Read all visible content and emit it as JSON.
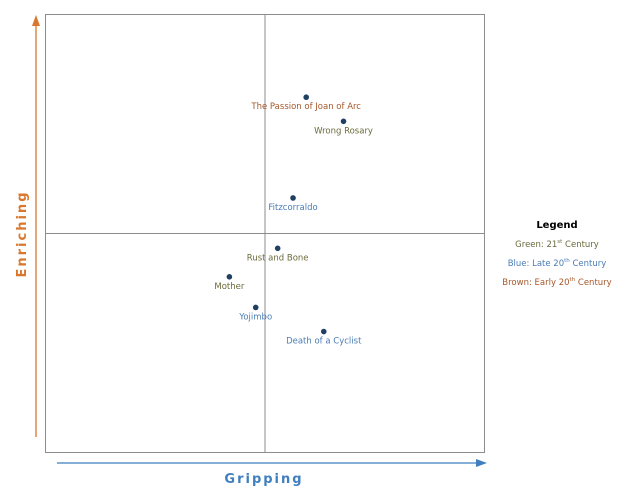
{
  "chart_data": {
    "type": "scatter",
    "xlabel": "Gripping",
    "ylabel": "Enriching",
    "xlim": [
      -10,
      10
    ],
    "ylim": [
      -10,
      10
    ],
    "grid": false,
    "quadrant_lines": true,
    "legend_position": "right",
    "marker_color": "#1f3f63",
    "points": [
      {
        "label": "The Passion of Joan of Arc",
        "x": 1.9,
        "y": 6.2,
        "group": "brown"
      },
      {
        "label": "Wrong Rosary",
        "x": 3.6,
        "y": 5.1,
        "group": "green"
      },
      {
        "label": "Fitzcorraldo",
        "x": 1.3,
        "y": 1.6,
        "group": "blue"
      },
      {
        "label": "Rust and Bone",
        "x": 0.6,
        "y": -0.7,
        "group": "green"
      },
      {
        "label": "Mother",
        "x": -1.6,
        "y": -2.0,
        "group": "green"
      },
      {
        "label": "Yojimbo",
        "x": -0.4,
        "y": -3.4,
        "group": "blue"
      },
      {
        "label": "Death of a Cyclist",
        "x": 2.7,
        "y": -4.5,
        "group": "blue"
      }
    ],
    "group_colors": {
      "green": "#6b6a3c",
      "blue": "#4a7db5",
      "brown": "#a5582a"
    },
    "axis_colors": {
      "x": "#3f7fbf",
      "y": "#d9772e"
    },
    "legend": {
      "title": "Legend",
      "entries": [
        {
          "group": "green",
          "prefix": "Green: 21",
          "sup": "st",
          "suffix": " Century"
        },
        {
          "group": "blue",
          "prefix": "Blue: Late 20",
          "sup": "th",
          "suffix": " Century"
        },
        {
          "group": "brown",
          "prefix": "Brown: Early 20",
          "sup": "th",
          "suffix": " Century"
        }
      ]
    }
  }
}
